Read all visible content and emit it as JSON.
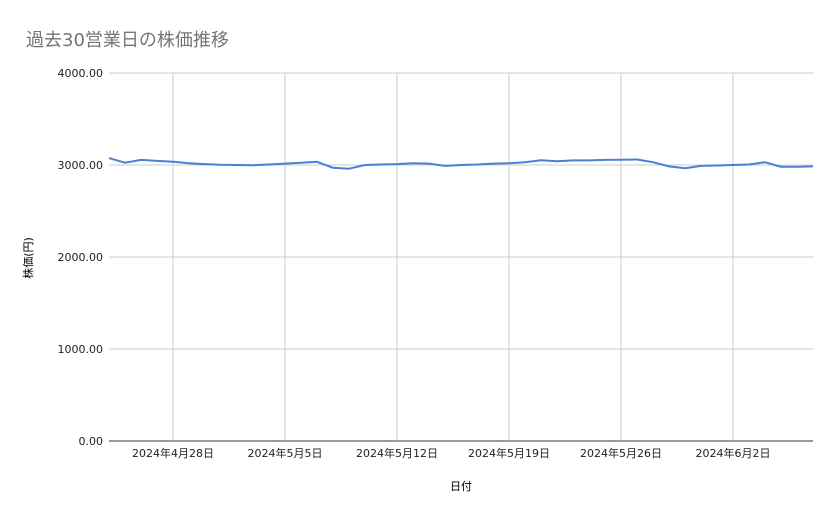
{
  "chart_data": {
    "type": "line",
    "title": "過去30営業日の株価推移",
    "xlabel": "日付",
    "ylabel": "株価(円)",
    "ylim": [
      0,
      4000
    ],
    "yticks": [
      "0.00",
      "1000.00",
      "2000.00",
      "3000.00",
      "4000.00"
    ],
    "xticks": [
      {
        "date": "2024-04-28",
        "label": "2024年4月28日"
      },
      {
        "date": "2024-05-05",
        "label": "2024年5月5日"
      },
      {
        "date": "2024-05-12",
        "label": "2024年5月12日"
      },
      {
        "date": "2024-05-19",
        "label": "2024年5月19日"
      },
      {
        "date": "2024-05-26",
        "label": "2024年5月26日"
      },
      {
        "date": "2024-06-02",
        "label": "2024年6月2日"
      }
    ],
    "grid": true,
    "colors": {
      "line": "#4a7fd6",
      "title": "#757575",
      "grid": "#cccccc"
    },
    "series": [
      {
        "x": [
          "2024-04-24",
          "2024-04-25",
          "2024-04-26",
          "2024-04-27",
          "2024-04-28",
          "2024-04-29",
          "2024-04-30",
          "2024-05-01",
          "2024-05-02",
          "2024-05-03",
          "2024-05-04",
          "2024-05-05",
          "2024-05-06",
          "2024-05-07",
          "2024-05-08",
          "2024-05-09",
          "2024-05-10",
          "2024-05-11",
          "2024-05-12",
          "2024-05-13",
          "2024-05-14",
          "2024-05-15",
          "2024-05-16",
          "2024-05-17",
          "2024-05-18",
          "2024-05-19",
          "2024-05-20",
          "2024-05-21",
          "2024-05-22",
          "2024-05-23",
          "2024-05-24",
          "2024-05-25",
          "2024-05-26",
          "2024-05-27",
          "2024-05-28",
          "2024-05-29",
          "2024-05-30",
          "2024-05-31",
          "2024-06-01",
          "2024-06-02",
          "2024-06-03",
          "2024-06-04",
          "2024-06-05",
          "2024-06-06",
          "2024-06-07"
        ],
        "values": [
          3075,
          3025,
          3055,
          3045,
          3035,
          3020,
          3010,
          3002,
          3000,
          2998,
          3005,
          3015,
          3025,
          3035,
          2970,
          2960,
          3000,
          3005,
          3010,
          3020,
          3015,
          2990,
          3000,
          3005,
          3015,
          3020,
          3030,
          3052,
          3040,
          3050,
          3050,
          3055,
          3058,
          3060,
          3030,
          2985,
          2965,
          2990,
          2995,
          3000,
          3005,
          3030,
          2980,
          2980,
          2985
        ]
      }
    ]
  }
}
